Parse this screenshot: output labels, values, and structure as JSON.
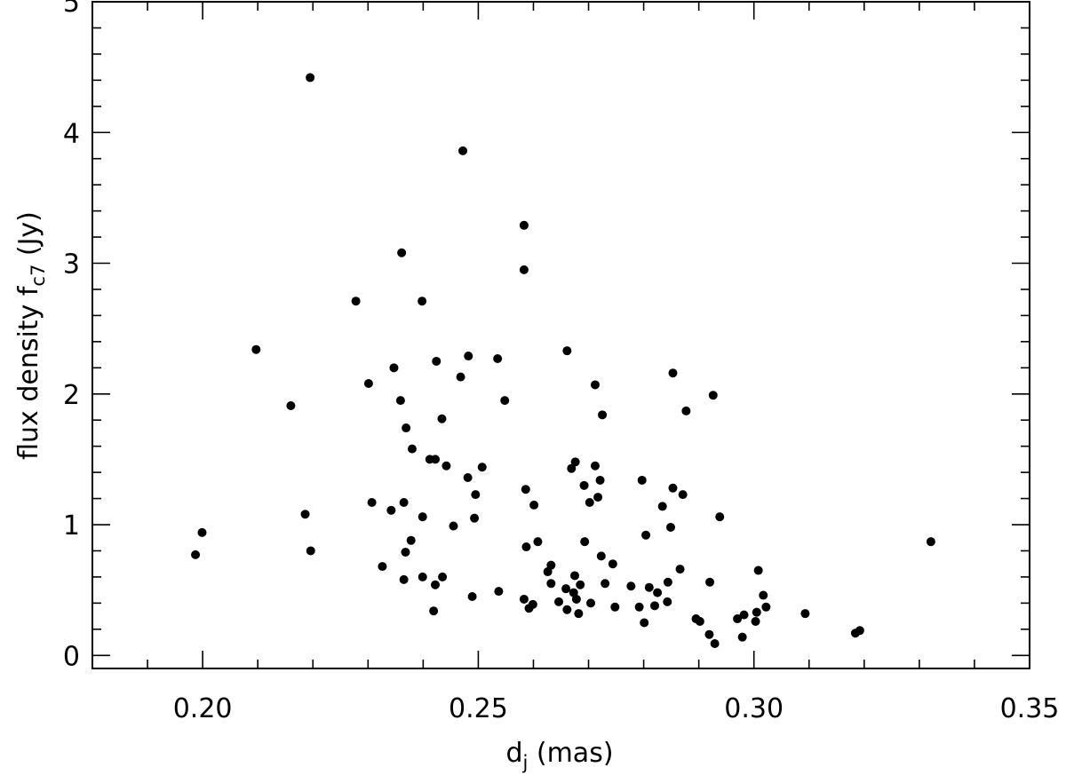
{
  "chart_data": {
    "type": "scatter",
    "title": "",
    "xlabel": {
      "main": "d",
      "sub": "j",
      "rest": " (mas)"
    },
    "ylabel": {
      "main": "flux density f",
      "sub": "c7",
      "rest": " (Jy)"
    },
    "xlim": [
      0.18,
      0.35
    ],
    "ylim": [
      -0.1,
      5.0
    ],
    "xticks": [
      0.2,
      0.25,
      0.3,
      0.35
    ],
    "xtick_labels": [
      "0.20",
      "0.25",
      "0.30",
      "0.35"
    ],
    "yticks": [
      0,
      1,
      2,
      3,
      4,
      5
    ],
    "ytick_labels": [
      "0",
      "1",
      "2",
      "3",
      "4",
      "5"
    ],
    "grid": false,
    "series": [
      {
        "points": [
          [
            0.2195,
            4.42
          ],
          [
            0.2472,
            3.86
          ],
          [
            0.2583,
            3.29
          ],
          [
            0.2583,
            2.95
          ],
          [
            0.2361,
            3.08
          ],
          [
            0.2278,
            2.71
          ],
          [
            0.2398,
            2.71
          ],
          [
            0.2097,
            2.34
          ],
          [
            0.2347,
            2.2
          ],
          [
            0.2424,
            2.25
          ],
          [
            0.2482,
            2.29
          ],
          [
            0.2535,
            2.27
          ],
          [
            0.2661,
            2.33
          ],
          [
            0.2468,
            2.13
          ],
          [
            0.2301,
            2.08
          ],
          [
            0.2712,
            2.07
          ],
          [
            0.2853,
            2.16
          ],
          [
            0.2926,
            1.99
          ],
          [
            0.216,
            1.91
          ],
          [
            0.2359,
            1.95
          ],
          [
            0.2548,
            1.95
          ],
          [
            0.2877,
            1.87
          ],
          [
            0.2725,
            1.84
          ],
          [
            0.2434,
            1.81
          ],
          [
            0.2369,
            1.74
          ],
          [
            0.238,
            1.58
          ],
          [
            0.2412,
            1.5
          ],
          [
            0.2422,
            1.5
          ],
          [
            0.2442,
            1.45
          ],
          [
            0.2507,
            1.44
          ],
          [
            0.2676,
            1.48
          ],
          [
            0.2669,
            1.43
          ],
          [
            0.2712,
            1.45
          ],
          [
            0.2481,
            1.36
          ],
          [
            0.2721,
            1.34
          ],
          [
            0.2797,
            1.34
          ],
          [
            0.2586,
            1.27
          ],
          [
            0.2692,
            1.3
          ],
          [
            0.2853,
            1.28
          ],
          [
            0.2495,
            1.23
          ],
          [
            0.2717,
            1.21
          ],
          [
            0.2871,
            1.23
          ],
          [
            0.2702,
            1.17
          ],
          [
            0.2307,
            1.17
          ],
          [
            0.2365,
            1.17
          ],
          [
            0.2601,
            1.15
          ],
          [
            0.2834,
            1.14
          ],
          [
            0.2342,
            1.11
          ],
          [
            0.2186,
            1.08
          ],
          [
            0.2399,
            1.06
          ],
          [
            0.2493,
            1.05
          ],
          [
            0.2938,
            1.06
          ],
          [
            0.2455,
            0.99
          ],
          [
            0.2849,
            0.98
          ],
          [
            0.1999,
            0.94
          ],
          [
            0.2804,
            0.92
          ],
          [
            0.2608,
            0.87
          ],
          [
            0.2693,
            0.87
          ],
          [
            0.3321,
            0.87
          ],
          [
            0.2378,
            0.88
          ],
          [
            0.2587,
            0.83
          ],
          [
            0.2368,
            0.79
          ],
          [
            0.2196,
            0.8
          ],
          [
            0.1987,
            0.77
          ],
          [
            0.2723,
            0.76
          ],
          [
            0.2744,
            0.7
          ],
          [
            0.2632,
            0.69
          ],
          [
            0.2326,
            0.68
          ],
          [
            0.2866,
            0.66
          ],
          [
            0.3008,
            0.65
          ],
          [
            0.2626,
            0.64
          ],
          [
            0.2399,
            0.6
          ],
          [
            0.2435,
            0.6
          ],
          [
            0.2365,
            0.58
          ],
          [
            0.2675,
            0.61
          ],
          [
            0.292,
            0.56
          ],
          [
            0.2632,
            0.55
          ],
          [
            0.2422,
            0.54
          ],
          [
            0.273,
            0.55
          ],
          [
            0.2685,
            0.54
          ],
          [
            0.2777,
            0.53
          ],
          [
            0.281,
            0.52
          ],
          [
            0.2844,
            0.56
          ],
          [
            0.2537,
            0.49
          ],
          [
            0.2825,
            0.48
          ],
          [
            0.2659,
            0.51
          ],
          [
            0.2673,
            0.48
          ],
          [
            0.3017,
            0.46
          ],
          [
            0.2489,
            0.45
          ],
          [
            0.2583,
            0.43
          ],
          [
            0.2646,
            0.41
          ],
          [
            0.2678,
            0.43
          ],
          [
            0.2704,
            0.4
          ],
          [
            0.2843,
            0.41
          ],
          [
            0.2599,
            0.39
          ],
          [
            0.2592,
            0.36
          ],
          [
            0.2748,
            0.37
          ],
          [
            0.2792,
            0.37
          ],
          [
            0.282,
            0.38
          ],
          [
            0.3022,
            0.37
          ],
          [
            0.2419,
            0.34
          ],
          [
            0.2661,
            0.35
          ],
          [
            0.2682,
            0.32
          ],
          [
            0.3005,
            0.33
          ],
          [
            0.3093,
            0.32
          ],
          [
            0.297,
            0.28
          ],
          [
            0.2982,
            0.31
          ],
          [
            0.2801,
            0.25
          ],
          [
            0.2895,
            0.28
          ],
          [
            0.2902,
            0.26
          ],
          [
            0.3003,
            0.26
          ],
          [
            0.2919,
            0.16
          ],
          [
            0.2979,
            0.14
          ],
          [
            0.3184,
            0.17
          ],
          [
            0.3192,
            0.19
          ],
          [
            0.2929,
            0.09
          ]
        ]
      }
    ]
  }
}
